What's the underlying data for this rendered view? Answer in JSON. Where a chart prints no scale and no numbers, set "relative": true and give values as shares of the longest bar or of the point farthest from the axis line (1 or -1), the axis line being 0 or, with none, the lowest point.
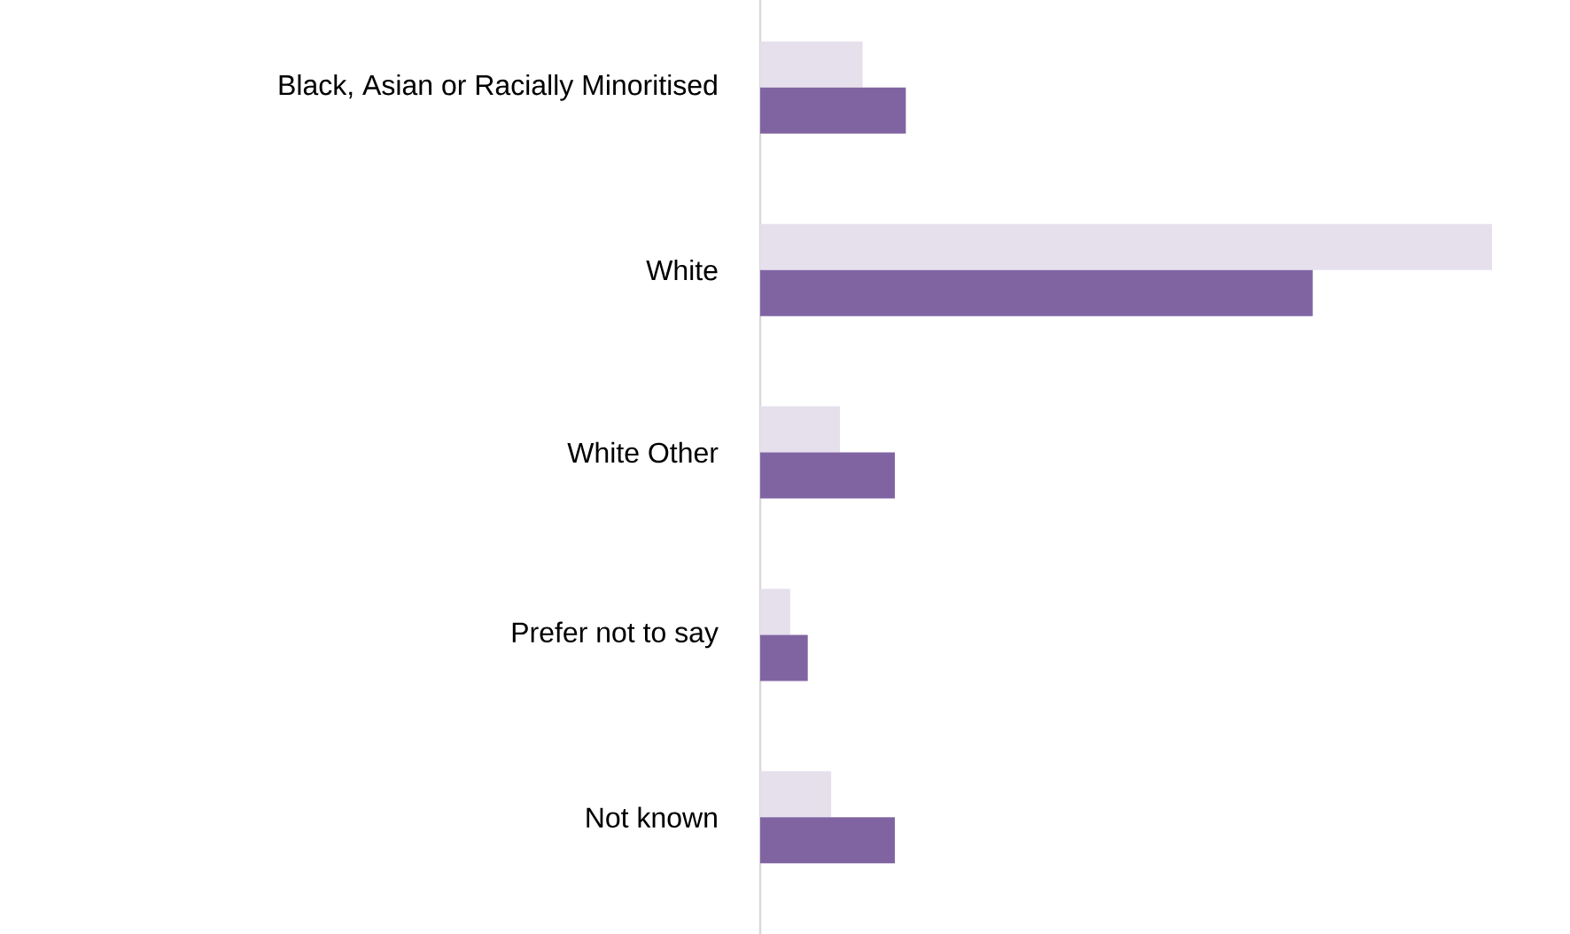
{
  "chart_data": {
    "type": "bar",
    "orientation": "horizontal",
    "relative": true,
    "categories": [
      "Black, Asian or Racially Minoritised",
      "White",
      "White Other",
      "Prefer not to say",
      "Not known"
    ],
    "series": [
      {
        "color": "#e6e0ed",
        "values": [
          0.14,
          1,
          0.109,
          0.041,
          0.097
        ]
      },
      {
        "color": "#8064a2",
        "values": [
          0.199,
          0.755,
          0.184,
          0.065,
          0.184
        ]
      }
    ]
  }
}
